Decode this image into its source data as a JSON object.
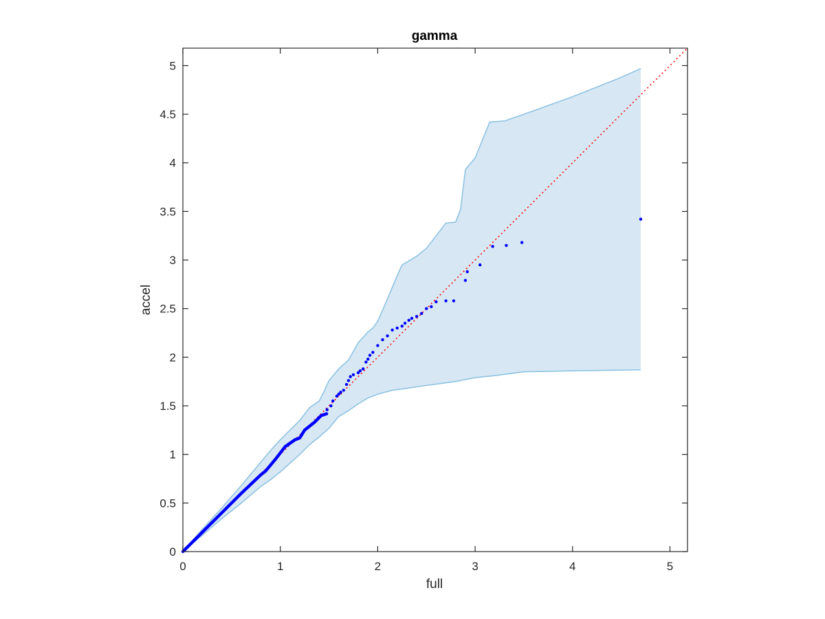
{
  "chart_data": {
    "type": "scatter",
    "title": "gamma",
    "xlabel": "full",
    "ylabel": "accel",
    "xlim": [
      0,
      5.18
    ],
    "ylim": [
      0,
      5.18
    ],
    "x_ticks": [
      0,
      1,
      2,
      3,
      4,
      5
    ],
    "y_ticks": [
      0,
      0.5,
      1,
      1.5,
      2,
      2.5,
      3,
      3.5,
      4,
      4.5,
      5
    ],
    "x_tick_labels": [
      "0",
      "1",
      "2",
      "3",
      "4",
      "5"
    ],
    "y_tick_labels": [
      "0",
      "0.5",
      "1",
      "1.5",
      "2",
      "2.5",
      "3",
      "3.5",
      "4",
      "4.5",
      "5"
    ],
    "grid": false,
    "box": true,
    "colors": {
      "points": "#0000ff",
      "reference_line": "#ff0000",
      "band_fill": "#d7e7f4",
      "band_edge": "#8ec3e2",
      "axes": "#262626"
    },
    "reference_line": {
      "style": "dotted",
      "from": [
        0,
        0
      ],
      "to": [
        5.18,
        5.18
      ]
    },
    "band": {
      "upper": [
        [
          0,
          0
        ],
        [
          0.2,
          0.23
        ],
        [
          0.4,
          0.45
        ],
        [
          0.6,
          0.68
        ],
        [
          0.8,
          0.92
        ],
        [
          0.9,
          1.04
        ],
        [
          1.0,
          1.15
        ],
        [
          1.1,
          1.25
        ],
        [
          1.2,
          1.35
        ],
        [
          1.3,
          1.48
        ],
        [
          1.4,
          1.55
        ],
        [
          1.45,
          1.65
        ],
        [
          1.5,
          1.76
        ],
        [
          1.6,
          1.88
        ],
        [
          1.7,
          1.97
        ],
        [
          1.8,
          2.15
        ],
        [
          1.9,
          2.26
        ],
        [
          1.95,
          2.3
        ],
        [
          2.0,
          2.37
        ],
        [
          2.1,
          2.6
        ],
        [
          2.2,
          2.84
        ],
        [
          2.25,
          2.95
        ],
        [
          2.3,
          2.98
        ],
        [
          2.4,
          3.04
        ],
        [
          2.5,
          3.12
        ],
        [
          2.6,
          3.25
        ],
        [
          2.7,
          3.38
        ],
        [
          2.8,
          3.39
        ],
        [
          2.85,
          3.52
        ],
        [
          2.9,
          3.93
        ],
        [
          3.0,
          4.05
        ],
        [
          3.15,
          4.42
        ],
        [
          3.3,
          4.43
        ],
        [
          3.5,
          4.5
        ],
        [
          4.0,
          4.68
        ],
        [
          4.5,
          4.88
        ],
        [
          4.7,
          4.97
        ]
      ],
      "lower": [
        [
          0,
          0
        ],
        [
          0.2,
          0.17
        ],
        [
          0.4,
          0.34
        ],
        [
          0.6,
          0.5
        ],
        [
          0.8,
          0.67
        ],
        [
          0.9,
          0.74
        ],
        [
          1.0,
          0.82
        ],
        [
          1.1,
          0.91
        ],
        [
          1.2,
          1.0
        ],
        [
          1.3,
          1.1
        ],
        [
          1.4,
          1.18
        ],
        [
          1.5,
          1.27
        ],
        [
          1.6,
          1.39
        ],
        [
          1.7,
          1.45
        ],
        [
          1.8,
          1.52
        ],
        [
          1.9,
          1.58
        ],
        [
          2.0,
          1.62
        ],
        [
          2.15,
          1.66
        ],
        [
          2.3,
          1.68
        ],
        [
          2.5,
          1.71
        ],
        [
          2.8,
          1.75
        ],
        [
          3.0,
          1.79
        ],
        [
          3.2,
          1.81
        ],
        [
          3.5,
          1.85
        ],
        [
          4.0,
          1.86
        ],
        [
          4.7,
          1.87
        ]
      ],
      "x_max": 4.7
    },
    "points_dense_segments": [
      [
        0,
        0
      ],
      [
        0.3,
        0.3
      ],
      [
        0.6,
        0.6
      ],
      [
        0.8,
        0.79
      ],
      [
        0.85,
        0.83
      ],
      [
        0.95,
        0.95
      ],
      [
        1.05,
        1.08
      ],
      [
        1.15,
        1.15
      ],
      [
        1.2,
        1.17
      ],
      [
        1.25,
        1.25
      ],
      [
        1.35,
        1.33
      ],
      [
        1.42,
        1.4
      ],
      [
        1.48,
        1.42
      ]
    ],
    "points": [
      [
        1.48,
        1.46
      ],
      [
        1.52,
        1.5
      ],
      [
        1.54,
        1.55
      ],
      [
        1.58,
        1.6
      ],
      [
        1.6,
        1.62
      ],
      [
        1.62,
        1.64
      ],
      [
        1.65,
        1.66
      ],
      [
        1.68,
        1.72
      ],
      [
        1.7,
        1.76
      ],
      [
        1.72,
        1.8
      ],
      [
        1.75,
        1.82
      ],
      [
        1.8,
        1.84
      ],
      [
        1.82,
        1.86
      ],
      [
        1.85,
        1.88
      ],
      [
        1.88,
        1.95
      ],
      [
        1.9,
        1.98
      ],
      [
        1.92,
        2.02
      ],
      [
        1.95,
        2.05
      ],
      [
        2.0,
        2.12
      ],
      [
        2.05,
        2.18
      ],
      [
        2.1,
        2.22
      ],
      [
        2.15,
        2.28
      ],
      [
        2.2,
        2.3
      ],
      [
        2.25,
        2.32
      ],
      [
        2.28,
        2.35
      ],
      [
        2.32,
        2.38
      ],
      [
        2.35,
        2.4
      ],
      [
        2.4,
        2.42
      ],
      [
        2.45,
        2.45
      ],
      [
        2.5,
        2.5
      ],
      [
        2.55,
        2.52
      ],
      [
        2.6,
        2.57
      ],
      [
        2.7,
        2.58
      ],
      [
        2.78,
        2.58
      ],
      [
        2.9,
        2.79
      ],
      [
        2.92,
        2.88
      ],
      [
        3.05,
        2.95
      ],
      [
        3.18,
        3.14
      ],
      [
        3.32,
        3.15
      ],
      [
        3.48,
        3.18
      ],
      [
        4.7,
        3.42
      ]
    ]
  }
}
